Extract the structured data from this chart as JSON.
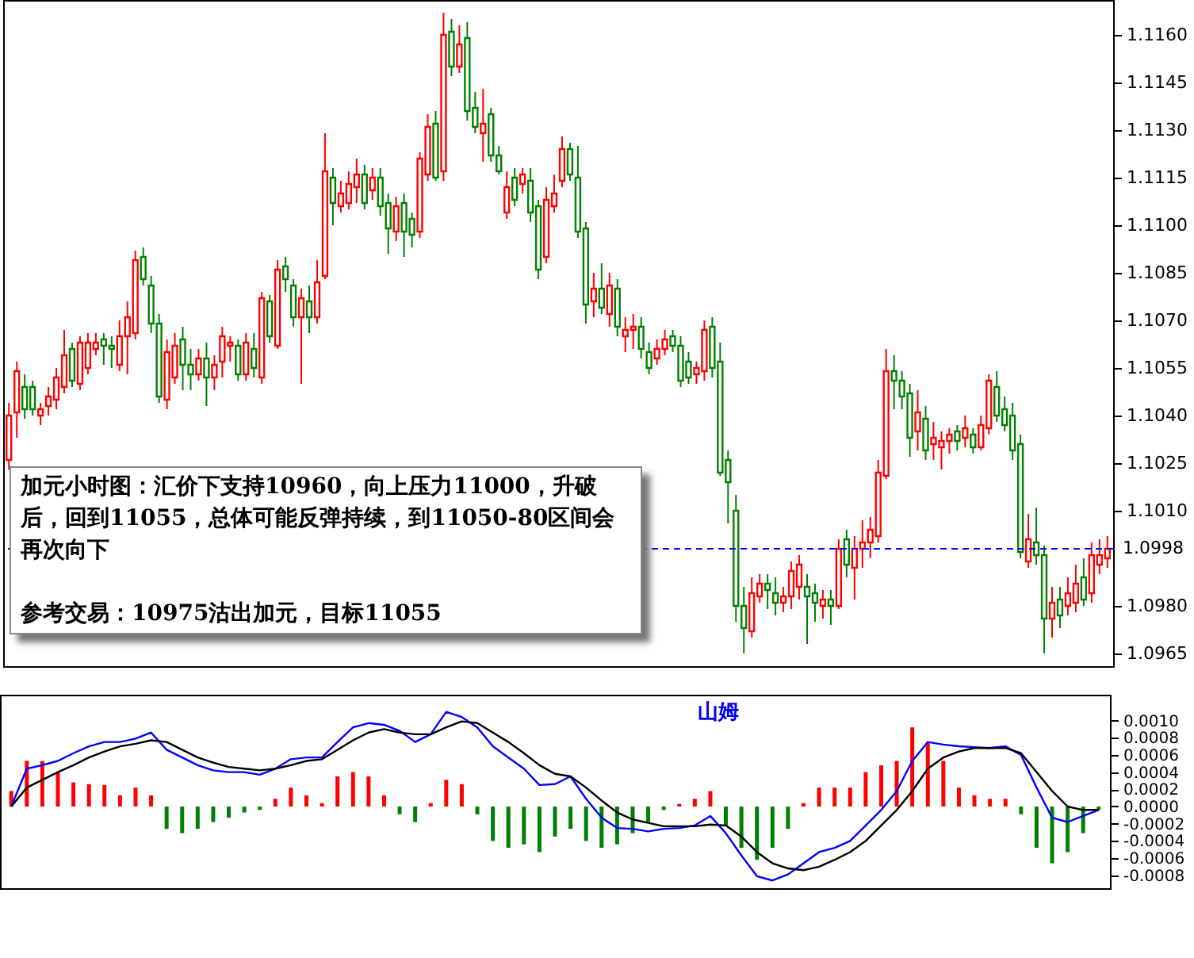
{
  "chart_data": [
    {
      "type": "candlestick",
      "categories": [
        null,
        null,
        null,
        null,
        null,
        null,
        null,
        null,
        null,
        null,
        null,
        null,
        null,
        null,
        null,
        null,
        null,
        null,
        null,
        null,
        null,
        null,
        null,
        null,
        null,
        null,
        null,
        null,
        null,
        null,
        null,
        null,
        null,
        null,
        null,
        null,
        null,
        null,
        null,
        null,
        null,
        null,
        null,
        null,
        null,
        null,
        null,
        null,
        null,
        null,
        null,
        null,
        null,
        null,
        null,
        null,
        null,
        null,
        null,
        null,
        null,
        null,
        null,
        null,
        null,
        null,
        null,
        null,
        null,
        null,
        null,
        null,
        null,
        null,
        null,
        null,
        null,
        null,
        null,
        null,
        null,
        null,
        null,
        null,
        null,
        null,
        null,
        null,
        null,
        null,
        null,
        null,
        null,
        null,
        null,
        null,
        null,
        null,
        null,
        null,
        null,
        null,
        null,
        null,
        null,
        null,
        null,
        null,
        null,
        null,
        null,
        null,
        null,
        null,
        null,
        null,
        null,
        null,
        null,
        null,
        null,
        null,
        null,
        null,
        null,
        null,
        null,
        null,
        null,
        null,
        null,
        null,
        null,
        null,
        null,
        null,
        null,
        null,
        null,
        null
      ],
      "ohlc": [
        [
          1.1026,
          1.1044,
          1.1023,
          1.104
        ],
        [
          1.1041,
          1.1057,
          1.1033,
          1.1054
        ],
        [
          1.1049,
          1.1053,
          1.1039,
          1.1042
        ],
        [
          1.1049,
          1.1051,
          1.104,
          1.1042
        ],
        [
          1.104,
          1.1044,
          1.1037,
          1.1042
        ],
        [
          1.1043,
          1.1049,
          1.104,
          1.1046
        ],
        [
          1.1045,
          1.1055,
          1.1042,
          1.1052
        ],
        [
          1.1049,
          1.1067,
          1.1047,
          1.1059
        ],
        [
          1.1061,
          1.1063,
          1.1049,
          1.1051
        ],
        [
          1.105,
          1.1065,
          1.1048,
          1.1063
        ],
        [
          1.1055,
          1.1066,
          1.1053,
          1.1063
        ],
        [
          1.1061,
          1.1066,
          1.1059,
          1.1063
        ],
        [
          1.1064,
          1.1066,
          1.1056,
          1.1062
        ],
        [
          1.1062,
          1.1065,
          1.1055,
          1.1061
        ],
        [
          1.1056,
          1.107,
          1.1054,
          1.1065
        ],
        [
          1.1065,
          1.1076,
          1.1053,
          1.1071
        ],
        [
          1.1066,
          1.1092,
          1.1064,
          1.1089
        ],
        [
          1.109,
          1.1093,
          1.1081,
          1.1083
        ],
        [
          1.1081,
          1.1084,
          1.1066,
          1.1069
        ],
        [
          1.1069,
          1.1072,
          1.1044,
          1.1046
        ],
        [
          1.1045,
          1.1064,
          1.1042,
          1.106
        ],
        [
          1.1052,
          1.1066,
          1.105,
          1.1062
        ],
        [
          1.1064,
          1.1068,
          1.1048,
          1.1056
        ],
        [
          1.1056,
          1.1061,
          1.1048,
          1.1053
        ],
        [
          1.1053,
          1.1061,
          1.1051,
          1.1058
        ],
        [
          1.1058,
          1.1063,
          1.1043,
          1.1052
        ],
        [
          1.1052,
          1.1059,
          1.1048,
          1.1056
        ],
        [
          1.1057,
          1.1068,
          1.1052,
          1.1065
        ],
        [
          1.1062,
          1.1065,
          1.1057,
          1.1063
        ],
        [
          1.1062,
          1.1064,
          1.1051,
          1.1053
        ],
        [
          1.1053,
          1.1066,
          1.1051,
          1.1063
        ],
        [
          1.1061,
          1.1066,
          1.1052,
          1.1055
        ],
        [
          1.1052,
          1.1079,
          1.105,
          1.1077
        ],
        [
          1.1076,
          1.1078,
          1.1063,
          1.1065
        ],
        [
          1.1062,
          1.1089,
          1.1061,
          1.1086
        ],
        [
          1.1087,
          1.109,
          1.1079,
          1.1083
        ],
        [
          1.1081,
          1.1083,
          1.1068,
          1.1071
        ],
        [
          1.1071,
          1.108,
          1.105,
          1.1077
        ],
        [
          1.1076,
          1.1081,
          1.1066,
          1.1071
        ],
        [
          1.1071,
          1.1089,
          1.1069,
          1.1082
        ],
        [
          1.1084,
          1.1129,
          1.1083,
          1.1117
        ],
        [
          1.1115,
          1.1118,
          1.11,
          1.1107
        ],
        [
          1.1106,
          1.1114,
          1.1104,
          1.111
        ],
        [
          1.1107,
          1.1117,
          1.1105,
          1.1113
        ],
        [
          1.1112,
          1.1121,
          1.1107,
          1.1116
        ],
        [
          1.1116,
          1.1119,
          1.1105,
          1.1107
        ],
        [
          1.1111,
          1.1118,
          1.1108,
          1.1115
        ],
        [
          1.1115,
          1.1118,
          1.1103,
          1.1106
        ],
        [
          1.1107,
          1.111,
          1.1091,
          1.1099
        ],
        [
          1.1098,
          1.1109,
          1.1095,
          1.1106
        ],
        [
          1.1107,
          1.111,
          1.109,
          1.1098
        ],
        [
          1.1102,
          1.1104,
          1.1093,
          1.1097
        ],
        [
          1.1098,
          1.1123,
          1.1096,
          1.1121
        ],
        [
          1.1116,
          1.1135,
          1.1114,
          1.1131
        ],
        [
          1.1132,
          1.1136,
          1.1114,
          1.1115
        ],
        [
          1.1117,
          1.1167,
          1.1114,
          1.116
        ],
        [
          1.1161,
          1.1165,
          1.1147,
          1.115
        ],
        [
          1.115,
          1.1163,
          1.1148,
          1.1157
        ],
        [
          1.1159,
          1.1164,
          1.1133,
          1.1136
        ],
        [
          1.1137,
          1.1142,
          1.1129,
          1.1131
        ],
        [
          1.1129,
          1.1143,
          1.112,
          1.1132
        ],
        [
          1.1135,
          1.1137,
          1.112,
          1.1122
        ],
        [
          1.1122,
          1.1125,
          1.1116,
          1.1117
        ],
        [
          1.1104,
          1.1117,
          1.1102,
          1.1112
        ],
        [
          1.1115,
          1.1118,
          1.1106,
          1.1108
        ],
        [
          1.1113,
          1.1118,
          1.111,
          1.1116
        ],
        [
          1.1114,
          1.1118,
          1.1101,
          1.1104
        ],
        [
          1.1106,
          1.1108,
          1.1083,
          1.1086
        ],
        [
          1.109,
          1.1112,
          1.1088,
          1.1108
        ],
        [
          1.1106,
          1.1116,
          1.1104,
          1.111
        ],
        [
          1.1114,
          1.1128,
          1.1112,
          1.1124
        ],
        [
          1.1124,
          1.1126,
          1.1114,
          1.1116
        ],
        [
          1.1115,
          1.1125,
          1.1096,
          1.1098
        ],
        [
          1.1099,
          1.1101,
          1.1069,
          1.1075
        ],
        [
          1.1076,
          1.1085,
          1.1071,
          1.108
        ],
        [
          1.108,
          1.1088,
          1.1072,
          1.1074
        ],
        [
          1.1072,
          1.1085,
          1.1068,
          1.1081
        ],
        [
          1.108,
          1.1083,
          1.1065,
          1.1068
        ],
        [
          1.1065,
          1.1071,
          1.106,
          1.1067
        ],
        [
          1.1067,
          1.1072,
          1.1061,
          1.1068
        ],
        [
          1.1068,
          1.1071,
          1.1058,
          1.1061
        ],
        [
          1.106,
          1.1063,
          1.1053,
          1.1055
        ],
        [
          1.1058,
          1.1064,
          1.1056,
          1.1061
        ],
        [
          1.1061,
          1.1067,
          1.1059,
          1.1064
        ],
        [
          1.1065,
          1.1067,
          1.106,
          1.1062
        ],
        [
          1.1062,
          1.1065,
          1.1049,
          1.1051
        ],
        [
          1.1057,
          1.106,
          1.105,
          1.1052
        ],
        [
          1.1053,
          1.1057,
          1.105,
          1.1055
        ],
        [
          1.1054,
          1.107,
          1.1051,
          1.1067
        ],
        [
          1.1068,
          1.1071,
          1.1052,
          1.1055
        ],
        [
          1.1057,
          1.1063,
          1.1021,
          1.1022
        ],
        [
          1.1026,
          1.1029,
          1.1006,
          1.1019
        ],
        [
          1.101,
          1.1015,
          1.0975,
          1.098
        ],
        [
          1.098,
          1.0986,
          1.0965,
          1.0973
        ],
        [
          1.0972,
          1.0989,
          1.097,
          1.0984
        ],
        [
          1.0983,
          1.099,
          1.0981,
          1.0987
        ],
        [
          1.0987,
          1.099,
          1.0979,
          1.0985
        ],
        [
          1.0984,
          1.0989,
          1.0977,
          1.0981
        ],
        [
          1.0981,
          1.0986,
          1.0978,
          1.0983
        ],
        [
          1.0983,
          1.0994,
          1.0979,
          1.0991
        ],
        [
          1.0986,
          1.0996,
          1.0982,
          1.0993
        ],
        [
          1.0986,
          1.099,
          1.0968,
          1.0983
        ],
        [
          1.0984,
          1.0987,
          1.0975,
          1.0981
        ],
        [
          1.098,
          1.0985,
          1.0976,
          1.0982
        ],
        [
          1.0982,
          1.0985,
          1.0974,
          1.098
        ],
        [
          1.098,
          1.1001,
          1.0979,
          1.0998
        ],
        [
          1.1001,
          1.1004,
          1.0989,
          1.0993
        ],
        [
          1.0992,
          1.1002,
          1.0982,
          1.0998
        ],
        [
          1.0998,
          1.1007,
          1.0992,
          1.1
        ],
        [
          1.1,
          1.1008,
          1.0995,
          1.1004
        ],
        [
          1.1002,
          1.1026,
          1.1,
          1.1022
        ],
        [
          1.1021,
          1.1061,
          1.102,
          1.1054
        ],
        [
          1.1054,
          1.1059,
          1.1042,
          1.1051
        ],
        [
          1.1051,
          1.1054,
          1.1042,
          1.1046
        ],
        [
          1.1047,
          1.105,
          1.1027,
          1.1033
        ],
        [
          1.1035,
          1.1048,
          1.1029,
          1.1041
        ],
        [
          1.1039,
          1.1043,
          1.1026,
          1.1029
        ],
        [
          1.1031,
          1.1038,
          1.1026,
          1.1033
        ],
        [
          1.103,
          1.1035,
          1.1023,
          1.1032
        ],
        [
          1.1032,
          1.1036,
          1.1028,
          1.1034
        ],
        [
          1.1035,
          1.1037,
          1.1029,
          1.1032
        ],
        [
          1.1033,
          1.104,
          1.103,
          1.1036
        ],
        [
          1.1034,
          1.1036,
          1.1028,
          1.103
        ],
        [
          1.103,
          1.104,
          1.1029,
          1.1037
        ],
        [
          1.1036,
          1.1053,
          1.1034,
          1.1051
        ],
        [
          1.1049,
          1.1054,
          1.1038,
          1.104
        ],
        [
          1.1042,
          1.1046,
          1.1035,
          1.1037
        ],
        [
          1.104,
          1.1044,
          1.1026,
          1.1029
        ],
        [
          1.1031,
          1.1034,
          1.0995,
          1.0997
        ],
        [
          1.0994,
          1.1009,
          1.0992,
          1.1001
        ],
        [
          1.1,
          1.1011,
          1.0993,
          1.0996
        ],
        [
          1.0996,
          1.0999,
          1.0965,
          1.0976
        ],
        [
          1.0976,
          1.0986,
          1.097,
          1.0981
        ],
        [
          1.0982,
          1.0986,
          1.0973,
          1.0977
        ],
        [
          1.098,
          1.0989,
          1.0977,
          1.0984
        ],
        [
          1.0981,
          1.0993,
          1.0978,
          1.0987
        ],
        [
          1.0989,
          1.0995,
          1.098,
          1.0982
        ],
        [
          1.0984,
          1.1,
          1.0981,
          1.0996
        ],
        [
          1.0993,
          1.1001,
          1.099,
          1.0996
        ],
        [
          1.0995,
          1.1002,
          1.0992,
          1.0998
        ]
      ],
      "colors": [
        "#ff0000",
        "#ff0000",
        "#008000",
        "#008000",
        "#ff0000",
        "#ff0000",
        "#ff0000",
        "#ff0000",
        "#008000",
        "#ff0000",
        "#ff0000",
        "#ff0000",
        "#008000",
        "#008000",
        "#ff0000",
        "#ff0000",
        "#ff0000",
        "#008000",
        "#008000",
        "#008000",
        "#ff0000",
        "#ff0000",
        "#008000",
        "#008000",
        "#ff0000",
        "#008000",
        "#ff0000",
        "#ff0000",
        "#ff0000",
        "#008000",
        "#ff0000",
        "#008000",
        "#ff0000",
        "#008000",
        "#ff0000",
        "#008000",
        "#008000",
        "#ff0000",
        "#008000",
        "#ff0000",
        "#ff0000",
        "#008000",
        "#ff0000",
        "#ff0000",
        "#ff0000",
        "#008000",
        "#ff0000",
        "#008000",
        "#008000",
        "#ff0000",
        "#008000",
        "#008000",
        "#ff0000",
        "#ff0000",
        "#008000",
        "#ff0000",
        "#008000",
        "#ff0000",
        "#008000",
        "#008000",
        "#ff0000",
        "#008000",
        "#008000",
        "#ff0000",
        "#008000",
        "#ff0000",
        "#008000",
        "#008000",
        "#ff0000",
        "#ff0000",
        "#ff0000",
        "#008000",
        "#008000",
        "#008000",
        "#ff0000",
        "#008000",
        "#ff0000",
        "#008000",
        "#ff0000",
        "#ff0000",
        "#008000",
        "#008000",
        "#ff0000",
        "#ff0000",
        "#008000",
        "#008000",
        "#008000",
        "#ff0000",
        "#ff0000",
        "#008000",
        "#008000",
        "#008000",
        "#008000",
        "#008000",
        "#ff0000",
        "#ff0000",
        "#008000",
        "#008000",
        "#ff0000",
        "#ff0000",
        "#ff0000",
        "#008000",
        "#008000",
        "#ff0000",
        "#008000",
        "#ff0000",
        "#008000",
        "#ff0000",
        "#ff0000",
        "#ff0000",
        "#ff0000",
        "#ff0000",
        "#008000",
        "#008000",
        "#008000",
        "#ff0000",
        "#008000",
        "#ff0000",
        "#ff0000",
        "#ff0000",
        "#008000",
        "#ff0000",
        "#008000",
        "#ff0000",
        "#ff0000",
        "#008000",
        "#008000",
        "#008000",
        "#008000",
        "#ff0000",
        "#008000",
        "#008000",
        "#ff0000",
        "#008000",
        "#ff0000",
        "#ff0000",
        "#008000",
        "#ff0000",
        "#ff0000",
        "#ff0000"
      ],
      "ylim": [
        1.0961,
        1.1171
      ],
      "yticks": [
        1.0965,
        {
          "value": 1.098,
          "label": "1.0980"
        },
        {
          "value": 1.101,
          "label": "1.1010"
        },
        1.1025,
        {
          "value": 1.104,
          "label": "1.1040"
        },
        1.1055,
        {
          "value": 1.107,
          "label": "1.1070"
        },
        1.1085,
        {
          "value": 1.11,
          "label": "1.1100"
        },
        1.1115,
        {
          "value": 1.113,
          "label": "1.1130"
        },
        1.1145,
        {
          "value": 1.116,
          "label": "1.1160"
        }
      ],
      "ref_lines": [
        {
          "axis": "y",
          "value": 1.0998,
          "label": "1.0998",
          "color": "#0000ff",
          "line_style": "dashed"
        }
      ],
      "annotations": [
        "加元小时图：汇价下支持10960，向上压力11000，升破后，回到11055，总体可能反弹持续，到11050-80区间会再次向下",
        "参考交易：10975沽出加元，目标11055"
      ]
    },
    {
      "type": "bar",
      "categories": [
        null,
        null,
        null,
        null,
        null,
        null,
        null,
        null,
        null,
        null,
        null,
        null,
        null,
        null,
        null,
        null,
        null,
        null,
        null,
        null,
        null,
        null,
        null,
        null,
        null,
        null,
        null,
        null,
        null,
        null,
        null,
        null,
        null,
        null,
        null,
        null,
        null,
        null,
        null,
        null,
        null,
        null,
        null,
        null,
        null,
        null,
        null,
        null,
        null,
        null,
        null,
        null,
        null,
        null,
        null,
        null,
        null,
        null,
        null,
        null,
        null,
        null,
        null,
        null,
        null,
        null,
        null,
        null,
        null,
        null,
        null
      ],
      "series": [
        {
          "type": "bar",
          "colors": [
            "#ff0000",
            "#ff0000",
            "#ff0000",
            "#ff0000",
            "#ff0000",
            "#ff0000",
            "#ff0000",
            "#ff0000",
            "#ff0000",
            "#ff0000",
            "#008000",
            "#008000",
            "#008000",
            "#008000",
            "#008000",
            "#008000",
            "#008000",
            "#ff0000",
            "#ff0000",
            "#ff0000",
            "#ff0000",
            "#ff0000",
            "#ff0000",
            "#ff0000",
            "#ff0000",
            "#008000",
            "#008000",
            "#ff0000",
            "#ff0000",
            "#ff0000",
            "#008000",
            "#008000",
            "#008000",
            "#008000",
            "#008000",
            "#008000",
            "#008000",
            "#008000",
            "#008000",
            "#008000",
            "#008000",
            "#008000",
            "#008000",
            "#ff0000",
            "#ff0000",
            "#ff0000",
            "#008000",
            "#008000",
            "#008000",
            "#008000",
            "#008000",
            "#ff0000",
            "#ff0000",
            "#ff0000",
            "#ff0000",
            "#ff0000",
            "#ff0000",
            "#ff0000",
            "#ff0000",
            "#ff0000",
            "#ff0000",
            "#ff0000",
            "#ff0000",
            "#ff0000",
            "#ff0000",
            "#008000",
            "#008000",
            "#008000",
            "#008000",
            "#008000",
            "#008000"
          ],
          "values": [
            0.00018,
            0.00053,
            0.00053,
            0.0004,
            0.00028,
            0.00026,
            0.00025,
            0.00013,
            0.00022,
            0.00013,
            -0.00026,
            -0.00031,
            -0.00026,
            -0.00018,
            -0.00013,
            -7e-05,
            -4e-05,
            9e-05,
            0.00022,
            0.00013,
            4e-05,
            0.00035,
            0.0004,
            0.00035,
            0.00013,
            -9e-05,
            -0.00018,
            4e-05,
            0.00031,
            0.00026,
            -9e-05,
            -0.0004,
            -0.00048,
            -0.00044,
            -0.00053,
            -0.00035,
            -0.00026,
            -0.0004,
            -0.00048,
            -0.00044,
            -0.00031,
            -0.00018,
            -4e-05,
            3e-05,
            9e-05,
            0.00018,
            -0.00022,
            -0.00048,
            -0.00062,
            -0.00048,
            -0.00026,
            4e-05,
            0.00022,
            0.00022,
            0.00022,
            0.0004,
            0.00048,
            0.00053,
            0.00092,
            0.00075,
            0.00053,
            0.00022,
            0.00013,
            9e-05,
            9e-05,
            -9e-05,
            -0.00048,
            -0.00066,
            -0.00053,
            -0.00031,
            -4e-05
          ]
        },
        {
          "type": "line",
          "color": "#0000ff",
          "values": [
            0,
            0.00044,
            0.00048,
            0.00053,
            0.00062,
            0.0007,
            0.00075,
            0.00075,
            0.00079,
            0.00086,
            0.00066,
            0.00057,
            0.00048,
            0.00042,
            0.0004,
            0.0004,
            0.00037,
            0.00044,
            0.00055,
            0.00057,
            0.00057,
            0.00075,
            0.00092,
            0.00097,
            0.00095,
            0.00088,
            0.00075,
            0.00084,
            0.0011,
            0.00104,
            0.00092,
            0.0007,
            0.00057,
            0.00044,
            0.00025,
            0.00026,
            0.00035,
            9e-05,
            -0.00013,
            -0.00025,
            -0.00026,
            -0.00029,
            -0.00026,
            -0.00025,
            -0.00022,
            -0.00011,
            -0.00031,
            -0.00057,
            -0.00081,
            -0.00086,
            -0.00079,
            -0.00066,
            -0.00053,
            -0.00048,
            -0.0004,
            -0.00022,
            -4e-05,
            0.00018,
            0.00053,
            0.00075,
            0.00072,
            0.0007,
            0.00069,
            0.00068,
            0.0007,
            0.0006,
            0.00022,
            -0.00013,
            -0.00018,
            -0.00011,
            -4e-05
          ]
        },
        {
          "type": "line",
          "color": "#000000",
          "values": [
            0,
            0.00022,
            0.00031,
            0.0004,
            0.00048,
            0.00057,
            0.00064,
            0.0007,
            0.00073,
            0.00077,
            0.00075,
            0.00066,
            0.00057,
            0.00051,
            0.00046,
            0.00044,
            0.00042,
            0.00044,
            0.00048,
            0.00053,
            0.00055,
            0.00066,
            0.00077,
            0.00086,
            0.0009,
            0.00086,
            0.00084,
            0.00084,
            0.00092,
            0.00099,
            0.00097,
            0.00086,
            0.00075,
            0.00062,
            0.00048,
            0.00038,
            0.00035,
            0.00022,
            7e-05,
            -7e-05,
            -0.00015,
            -0.00019,
            -0.00023,
            -0.00023,
            -0.00023,
            -0.00021,
            -0.00022,
            -0.00035,
            -0.00053,
            -0.00066,
            -0.00072,
            -0.00074,
            -0.0007,
            -0.00062,
            -0.00053,
            -0.0004,
            -0.00022,
            -4e-05,
            0.00018,
            0.00044,
            0.00057,
            0.00064,
            0.00068,
            0.00068,
            0.00068,
            0.00062,
            0.0004,
            0.00018,
            0,
            -4e-05,
            -4e-05
          ]
        }
      ],
      "ylim": [
        -0.00095,
        0.0013
      ],
      "yticks": [
        {
          "value": -0.0008,
          "label": "-0.0008"
        },
        {
          "value": -0.0006,
          "label": "-0.0006"
        },
        {
          "value": -0.0004,
          "label": "-0.0004"
        },
        {
          "value": -0.0002,
          "label": "-0.0002"
        },
        {
          "value": 0,
          "label": "0.0000"
        },
        {
          "value": 0.0002,
          "label": "0.0002"
        },
        {
          "value": 0.0004,
          "label": "0.0004"
        },
        {
          "value": 0.0006,
          "label": "0.0006"
        },
        {
          "value": 0.0008,
          "label": "0.0008"
        },
        {
          "value": 0.001,
          "label": "0.0010"
        }
      ],
      "marker": "none",
      "line_style": "solid",
      "annotations": [
        "山姆"
      ]
    }
  ]
}
